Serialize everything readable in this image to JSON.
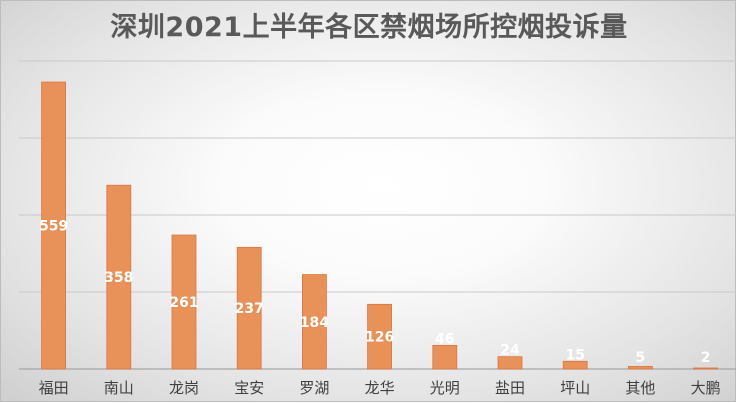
{
  "colors": {
    "bar": "#E8925A",
    "bar_edge": "#D9773E",
    "grid": "#c9c9c9",
    "axis": "#a6a6a6",
    "label": "#ffffff",
    "tick": "#404040"
  },
  "chart_data": {
    "type": "bar",
    "title": "深圳2021上半年各区禁烟场所控烟投诉量",
    "categories": [
      "福田",
      "南山",
      "龙岗",
      "宝安",
      "罗湖",
      "龙华",
      "光明",
      "盐田",
      "坪山",
      "其他",
      "大鹏"
    ],
    "values": [
      559,
      358,
      261,
      237,
      184,
      126,
      46,
      24,
      15,
      5,
      2
    ],
    "data_labels": [
      "559",
      "358",
      "261",
      "237",
      "184",
      "126",
      "46",
      "24",
      "15",
      "5",
      "2"
    ],
    "ylim": [
      0,
      600
    ],
    "y_gridlines": [
      0,
      150,
      300,
      450,
      600
    ],
    "grid": true,
    "legend": "none"
  }
}
